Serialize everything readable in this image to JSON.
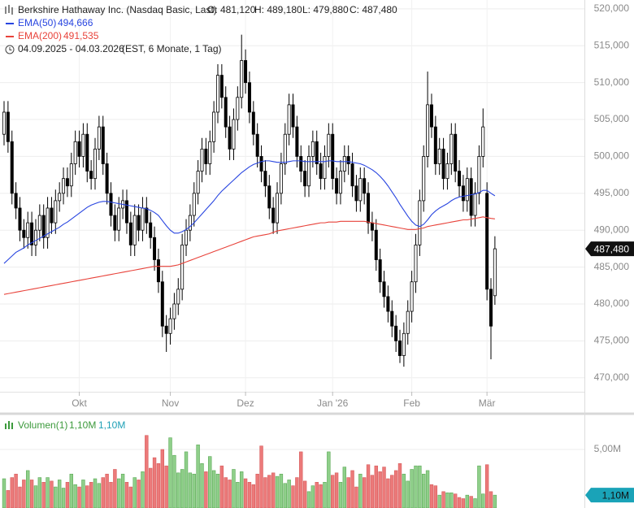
{
  "chart_data": [
    {
      "type": "candlestick",
      "title": "Berkshire Hathaway Inc. (Nasdaq Basic, Last)",
      "ohlc_summary": [
        "O: 481,120",
        "H: 489,180",
        "L: 479,880",
        "C: 487,480"
      ],
      "period": "04.09.2025 - 04.03.2026",
      "period_note": "(EST, 6 Monate, 1 Tag)",
      "categories": [
        null,
        null,
        null,
        null,
        null,
        null,
        null,
        null,
        null,
        null,
        null,
        null,
        null,
        null,
        null,
        null,
        null,
        null,
        null,
        "Okt",
        null,
        null,
        null,
        null,
        null,
        null,
        null,
        null,
        null,
        null,
        null,
        null,
        null,
        null,
        null,
        null,
        null,
        null,
        null,
        null,
        null,
        null,
        "Nov",
        null,
        null,
        null,
        null,
        null,
        null,
        null,
        null,
        null,
        null,
        null,
        null,
        null,
        null,
        null,
        null,
        null,
        null,
        "Dez",
        null,
        null,
        null,
        null,
        null,
        null,
        null,
        null,
        null,
        null,
        null,
        null,
        null,
        null,
        null,
        null,
        null,
        null,
        null,
        null,
        null,
        "Jan '26",
        null,
        null,
        null,
        null,
        null,
        null,
        null,
        null,
        null,
        null,
        null,
        null,
        null,
        null,
        null,
        null,
        null,
        null,
        null,
        "Feb",
        null,
        null,
        null,
        null,
        null,
        null,
        null,
        null,
        null,
        null,
        null,
        null,
        null,
        null,
        null,
        null,
        null,
        null,
        "Mär",
        null,
        null
      ],
      "open": [
        503000,
        506000,
        502000,
        495000,
        493000,
        490000,
        489000,
        491000,
        488000,
        490000,
        492000,
        489000,
        493000,
        491000,
        494000,
        495000,
        497000,
        496000,
        499000,
        502000,
        500000,
        503000,
        498000,
        497000,
        501000,
        504000,
        499000,
        495000,
        492000,
        490000,
        493000,
        494000,
        491000,
        488000,
        492000,
        490000,
        493000,
        491000,
        489000,
        486000,
        483000,
        477000,
        476000,
        478000,
        480000,
        482000,
        488000,
        490000,
        492000,
        495000,
        498000,
        501000,
        499000,
        502000,
        506000,
        511000,
        508000,
        504000,
        501000,
        505000,
        508000,
        513000,
        510000,
        506000,
        503000,
        500000,
        498000,
        496000,
        493000,
        491000,
        495000,
        499000,
        503000,
        507000,
        504000,
        500000,
        498000,
        496000,
        500000,
        502000,
        499000,
        497000,
        500000,
        503000,
        497000,
        495000,
        498000,
        500000,
        499000,
        496000,
        494000,
        497000,
        495000,
        491000,
        490000,
        486000,
        483000,
        481000,
        479000,
        477000,
        475000,
        473000,
        476000,
        479000,
        483000,
        488000,
        494000,
        500000,
        507000,
        504000,
        499000,
        501000,
        497000,
        499000,
        503000,
        498000,
        496000,
        494000,
        497000,
        492000,
        495000,
        500000,
        495000,
        482000,
        481120
      ],
      "high": [
        507500,
        507500,
        503500,
        496500,
        494500,
        491500,
        492500,
        492500,
        491500,
        493500,
        493500,
        494500,
        494500,
        495500,
        496500,
        498500,
        498500,
        500500,
        503500,
        503500,
        504500,
        504500,
        499500,
        502500,
        505500,
        505500,
        500500,
        496500,
        493500,
        494500,
        495500,
        495500,
        492500,
        493500,
        493500,
        494500,
        494500,
        492500,
        490500,
        487500,
        484500,
        478500,
        479500,
        481500,
        483500,
        489500,
        491500,
        493500,
        496500,
        499500,
        502500,
        502500,
        503500,
        507500,
        512500,
        512500,
        509500,
        505500,
        506500,
        509500,
        516500,
        514500,
        511500,
        507500,
        504500,
        501500,
        499500,
        497500,
        494500,
        496500,
        500500,
        504500,
        508500,
        508500,
        505500,
        501500,
        499500,
        501500,
        503500,
        503500,
        500500,
        501500,
        504500,
        504500,
        498500,
        499500,
        501500,
        501500,
        500500,
        497500,
        498500,
        498500,
        496500,
        492500,
        491500,
        487500,
        484500,
        482500,
        480500,
        478500,
        476500,
        477500,
        480500,
        484500,
        489500,
        495500,
        501500,
        511500,
        508500,
        505500,
        502500,
        502500,
        500500,
        504500,
        504500,
        499500,
        497500,
        498500,
        498500,
        496500,
        501500,
        506500,
        496500,
        483500,
        489180
      ],
      "low": [
        501500,
        500500,
        493500,
        491500,
        488500,
        487500,
        487500,
        486500,
        486500,
        488500,
        487500,
        487500,
        489500,
        489500,
        492500,
        493500,
        494500,
        494500,
        497500,
        498500,
        498500,
        496500,
        495500,
        495500,
        499500,
        497500,
        493500,
        490500,
        488500,
        488500,
        491500,
        489500,
        486500,
        486500,
        488500,
        488500,
        489500,
        487500,
        484500,
        481500,
        475500,
        473500,
        474500,
        476500,
        478500,
        480500,
        486500,
        488500,
        490500,
        493500,
        496500,
        497500,
        497500,
        500500,
        504500,
        506500,
        502500,
        499500,
        499500,
        503500,
        506500,
        508500,
        504500,
        501500,
        498500,
        496500,
        494500,
        491500,
        489500,
        489500,
        493500,
        497500,
        501500,
        502500,
        498500,
        496500,
        494500,
        494500,
        498500,
        497500,
        495500,
        495500,
        498500,
        495500,
        493500,
        493500,
        496500,
        497500,
        494500,
        492500,
        492500,
        493500,
        489500,
        488500,
        484500,
        481500,
        479500,
        477500,
        475500,
        473500,
        472000,
        471500,
        474500,
        477500,
        481500,
        486500,
        492500,
        498500,
        502500,
        497500,
        497500,
        495500,
        495500,
        497500,
        496500,
        494500,
        492500,
        492500,
        490500,
        490500,
        493500,
        498500,
        480500,
        472500,
        479880
      ],
      "close": [
        506000,
        502000,
        495000,
        493000,
        490000,
        489000,
        491000,
        488000,
        490000,
        492000,
        489000,
        493000,
        491000,
        494000,
        495000,
        497000,
        496000,
        499000,
        502000,
        500000,
        503000,
        498000,
        497000,
        501000,
        504000,
        499000,
        495000,
        492000,
        490000,
        493000,
        494000,
        491000,
        488000,
        492000,
        490000,
        493000,
        491000,
        489000,
        486000,
        483000,
        477000,
        476000,
        478000,
        480000,
        482000,
        488000,
        490000,
        492000,
        495000,
        498000,
        501000,
        499000,
        502000,
        506000,
        511000,
        508000,
        504000,
        501000,
        505000,
        508000,
        513000,
        510000,
        506000,
        503000,
        500000,
        498000,
        496000,
        493000,
        491000,
        495000,
        499000,
        503000,
        507000,
        504000,
        500000,
        498000,
        496000,
        500000,
        502000,
        499000,
        497000,
        500000,
        503000,
        497000,
        495000,
        498000,
        500000,
        499000,
        496000,
        494000,
        497000,
        495000,
        491000,
        490000,
        486000,
        483000,
        481000,
        479000,
        477000,
        475000,
        473000,
        476000,
        479000,
        483000,
        488000,
        494000,
        500000,
        507000,
        504000,
        499000,
        501000,
        497000,
        499000,
        503000,
        498000,
        496000,
        494000,
        497000,
        492000,
        495000,
        500000,
        504000,
        482000,
        477000,
        487480
      ],
      "up_color": "#ffffff",
      "down_color": "#000000",
      "wick_color": "#000000",
      "series": [
        {
          "name": "EMA(50)",
          "color": "#2845e0",
          "value_label": "494,666",
          "values": [
            485500,
            486000,
            486500,
            487000,
            487300,
            487600,
            488000,
            488300,
            488600,
            488900,
            489200,
            489500,
            489800,
            490100,
            490400,
            490800,
            491100,
            491500,
            491900,
            492300,
            492700,
            493100,
            493400,
            493600,
            493800,
            493900,
            493900,
            493800,
            493700,
            493600,
            493500,
            493400,
            493300,
            493200,
            493100,
            493000,
            492900,
            492700,
            492400,
            492000,
            491300,
            490600,
            490000,
            489600,
            489600,
            489800,
            490100,
            490500,
            491000,
            491600,
            492200,
            492800,
            493400,
            494000,
            494700,
            495300,
            495800,
            496300,
            496800,
            497300,
            497800,
            498200,
            498600,
            498900,
            499100,
            499300,
            499400,
            499400,
            499300,
            499200,
            499200,
            499200,
            499300,
            499400,
            499400,
            499400,
            499300,
            499300,
            499300,
            499300,
            499300,
            499300,
            499400,
            499400,
            499300,
            499300,
            499300,
            499300,
            499200,
            499100,
            499000,
            498800,
            498500,
            498200,
            497800,
            497300,
            496700,
            496000,
            495200,
            494400,
            493500,
            492700,
            491900,
            491200,
            490700,
            490500,
            490800,
            491400,
            492100,
            492600,
            493000,
            493300,
            493600,
            494000,
            494300,
            494500,
            494600,
            494700,
            494800,
            494900,
            495100,
            495400,
            495400,
            495000,
            494666
          ]
        },
        {
          "name": "EMA(200)",
          "color": "#e8423a",
          "value_label": "491,535",
          "values": [
            481300,
            481400,
            481500,
            481600,
            481700,
            481800,
            481900,
            482000,
            482100,
            482200,
            482300,
            482400,
            482500,
            482600,
            482700,
            482800,
            482900,
            483000,
            483100,
            483200,
            483300,
            483400,
            483500,
            483600,
            483700,
            483800,
            483900,
            484000,
            484100,
            484200,
            484300,
            484400,
            484500,
            484600,
            484700,
            484800,
            484900,
            485000,
            485100,
            485100,
            485100,
            485100,
            485100,
            485200,
            485300,
            485500,
            485700,
            485900,
            486100,
            486300,
            486500,
            486700,
            486900,
            487100,
            487300,
            487500,
            487700,
            487900,
            488100,
            488300,
            488500,
            488700,
            488900,
            489100,
            489200,
            489300,
            489400,
            489500,
            489700,
            489900,
            490000,
            490100,
            490200,
            490300,
            490400,
            490500,
            490600,
            490700,
            490800,
            490900,
            491000,
            491000,
            491100,
            491100,
            491100,
            491200,
            491200,
            491200,
            491200,
            491200,
            491200,
            491200,
            491100,
            491000,
            490900,
            490800,
            490700,
            490600,
            490500,
            490400,
            490300,
            490200,
            490100,
            490100,
            490100,
            490200,
            490300,
            490500,
            490600,
            490700,
            490800,
            490900,
            491000,
            491100,
            491200,
            491300,
            491400,
            491400,
            491500,
            491600,
            491700,
            491800,
            491700,
            491600,
            491535
          ]
        }
      ],
      "ylim": [
        468100,
        521200
      ],
      "yticks": [
        {
          "value": 470000,
          "label": "470,000"
        },
        {
          "value": 475000,
          "label": "475,000"
        },
        {
          "value": 480000,
          "label": "480,000"
        },
        {
          "value": 485000,
          "label": "485,000"
        },
        {
          "value": 490000,
          "label": "490,000"
        },
        {
          "value": 495000,
          "label": "495,000"
        },
        {
          "value": 500000,
          "label": "500,000"
        },
        {
          "value": 505000,
          "label": "505,000"
        },
        {
          "value": 510000,
          "label": "510,000"
        },
        {
          "value": 515000,
          "label": "515,000"
        },
        {
          "value": 520000,
          "label": "520,000"
        }
      ],
      "last_label": "487,480",
      "grid": true
    },
    {
      "type": "bar",
      "title": "Volumen(1)",
      "legend_values": [
        "1,10M",
        "1,10M"
      ],
      "values": [
        2500000,
        1500000,
        2600000,
        2900000,
        1800000,
        2400000,
        3200000,
        2400000,
        1900000,
        2600000,
        2200000,
        2600000,
        2300000,
        1800000,
        2400000,
        1700000,
        2200000,
        2900000,
        2000000,
        1800000,
        2400000,
        1900000,
        2200000,
        2500000,
        2100000,
        2600000,
        2900000,
        2200000,
        3300000,
        2500000,
        2900000,
        2200000,
        1800000,
        2600000,
        2400000,
        3100000,
        6200000,
        3400000,
        4300000,
        3800000,
        5000000,
        3600000,
        6000000,
        4500000,
        3000000,
        3300000,
        4800000,
        3000000,
        2900000,
        5400000,
        3800000,
        3100000,
        4400000,
        3200000,
        2900000,
        3600000,
        2600000,
        2400000,
        3300000,
        2200000,
        3100000,
        2500000,
        2200000,
        2000000,
        2900000,
        5300000,
        2600000,
        2800000,
        3000000,
        2700000,
        2900000,
        2100000,
        2400000,
        1900000,
        2600000,
        4800000,
        2300000,
        1400000,
        1900000,
        2200000,
        2000000,
        2200000,
        4800000,
        2800000,
        3000000,
        2200000,
        3500000,
        2600000,
        3200000,
        1800000,
        2900000,
        2600000,
        3700000,
        2800000,
        3600000,
        3100000,
        3500000,
        2500000,
        2800000,
        3200000,
        3800000,
        2900000,
        2300000,
        3300000,
        3600000,
        3600000,
        2900000,
        3200000,
        2000000,
        1900000,
        1100000,
        1400000,
        1300000,
        1300000,
        1200000,
        900000,
        800000,
        1100000,
        1000000,
        800000,
        3600000,
        1200000,
        3700000,
        1400000,
        1100000
      ],
      "up_color": "#8fcf8a",
      "down_color": "#ec7a7a",
      "ylim": [
        0,
        7850000
      ],
      "yticks": [
        {
          "value": 5000000,
          "label": "5,00M"
        }
      ],
      "last_label": "1,10M"
    }
  ]
}
